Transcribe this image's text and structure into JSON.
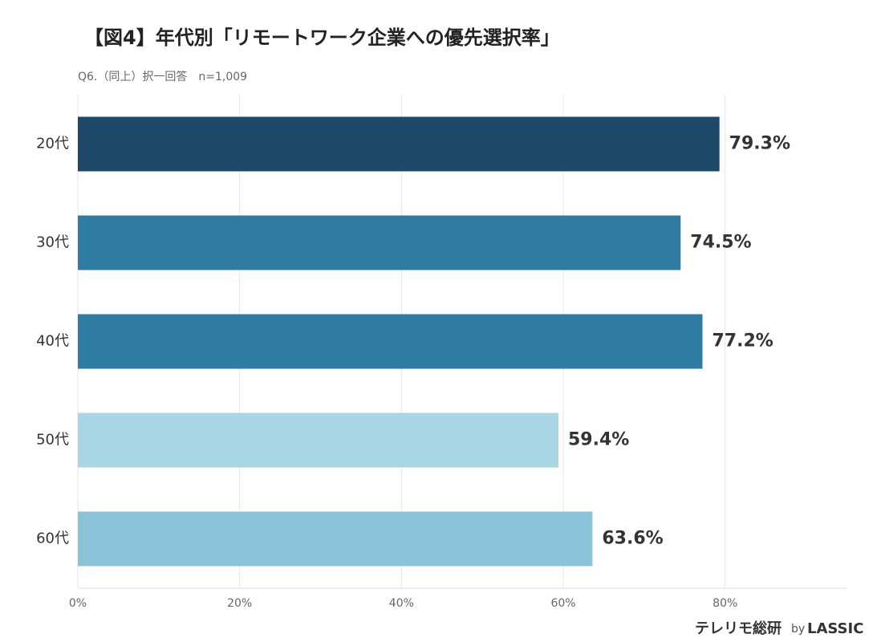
{
  "chart_data": {
    "type": "bar",
    "orientation": "horizontal",
    "title": "【図4】年代別「リモートワーク企業への優先選択率」",
    "subtitle": "Q6.（同上）択一回答　n=1,009",
    "categories": [
      "20代",
      "30代",
      "40代",
      "50代",
      "60代"
    ],
    "values": [
      79.3,
      74.5,
      77.2,
      59.4,
      63.6
    ],
    "value_labels": [
      "79.3%",
      "74.5%",
      "77.2%",
      "59.4%",
      "63.6%"
    ],
    "colors": [
      "#1e4a69",
      "#2e7ca1",
      "#2e7ca1",
      "#a9d6e4",
      "#8ac3d8"
    ],
    "xlim": [
      0,
      95
    ],
    "xticks": [
      {
        "value": 0,
        "label": "0%"
      },
      {
        "value": 20,
        "label": "20%"
      },
      {
        "value": 40,
        "label": "40%"
      },
      {
        "value": 60,
        "label": "60%"
      },
      {
        "value": 80,
        "label": "80%"
      }
    ],
    "grid": true,
    "footer": {
      "brand": "テレリモ総研",
      "by": "by",
      "company": "LASSIC"
    }
  }
}
